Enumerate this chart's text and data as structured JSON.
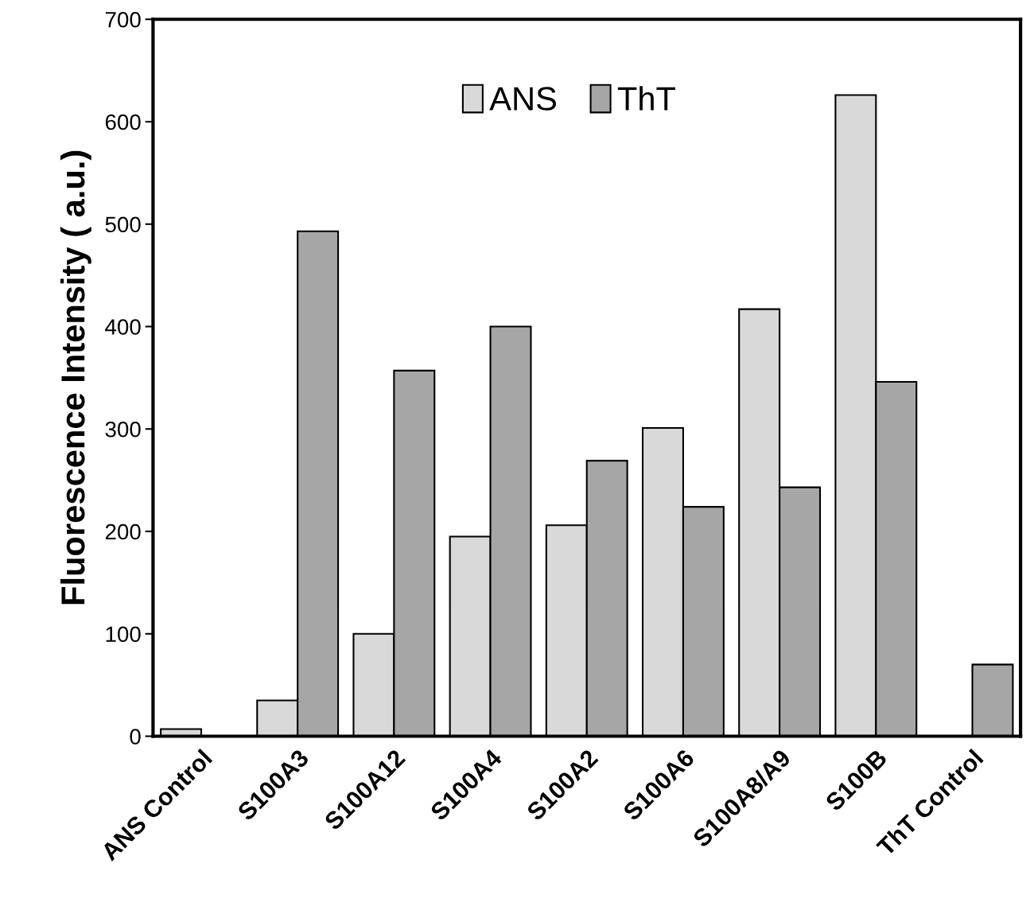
{
  "chart_data": {
    "type": "bar",
    "ylabel": "Fluorescence Intensity ( a.u.)",
    "categories": [
      "ANS Control",
      "S100A3",
      "S100A12",
      "S100A4",
      "S100A2",
      "S100A6",
      "S100A8/A9",
      "S100B",
      "ThT Control"
    ],
    "series": [
      {
        "name": "ANS",
        "color": "#d9d9d9",
        "values": [
          7,
          35,
          100,
          195,
          206,
          301,
          417,
          626,
          null
        ]
      },
      {
        "name": "ThT",
        "color": "#a6a6a6",
        "values": [
          null,
          493,
          357,
          400,
          269,
          224,
          243,
          346,
          70
        ]
      }
    ],
    "ylim": [
      0,
      700
    ],
    "yticks": [
      0,
      100,
      200,
      300,
      400,
      500,
      600,
      700
    ],
    "grid": false,
    "legend": "top"
  }
}
